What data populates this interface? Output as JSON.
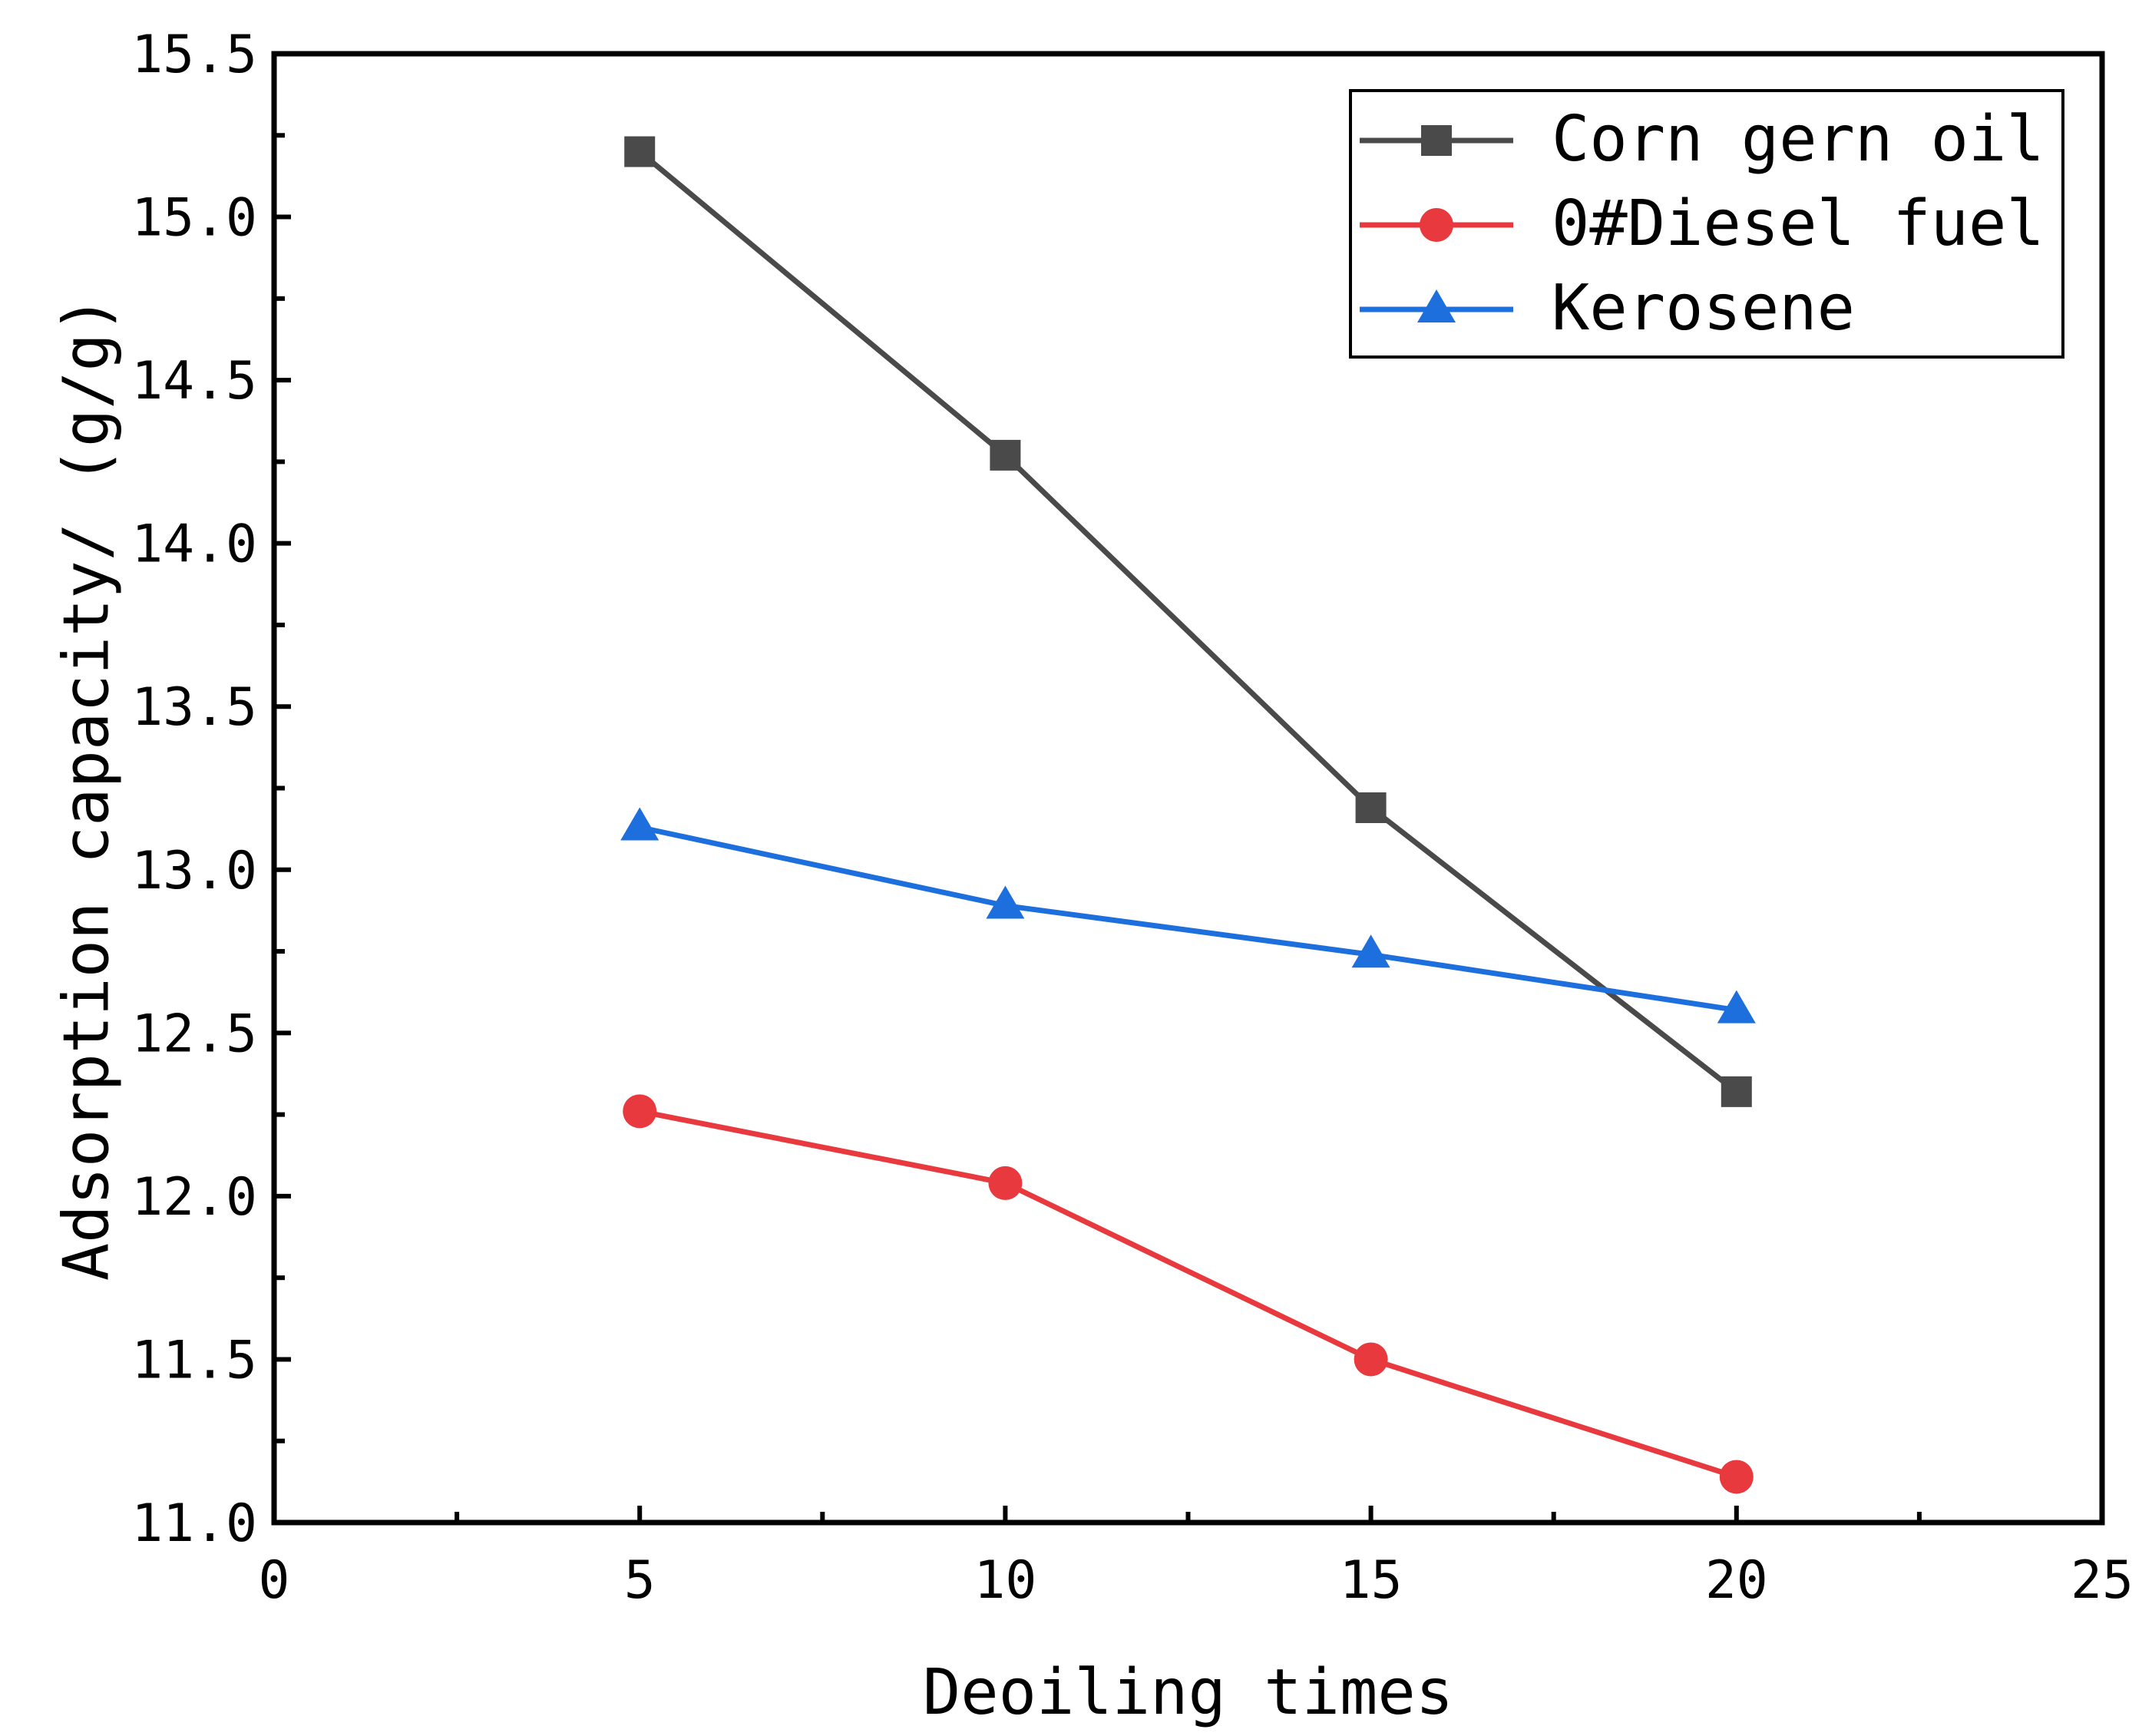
{
  "chart_data": {
    "type": "line",
    "title": "",
    "xlabel": "Deoiling times",
    "ylabel": "Adsorption capacity/ (g/g)",
    "xlim": [
      0,
      25
    ],
    "ylim": [
      11.0,
      15.5
    ],
    "x_ticks": [
      0,
      5,
      10,
      15,
      20,
      25
    ],
    "x_tick_labels": [
      "0",
      "5",
      "10",
      "15",
      "20",
      "25"
    ],
    "y_ticks": [
      11.0,
      11.5,
      12.0,
      12.5,
      13.0,
      13.5,
      14.0,
      14.5,
      15.0,
      15.5
    ],
    "y_tick_labels": [
      "11.0",
      "11.5",
      "12.0",
      "12.5",
      "13.0",
      "13.5",
      "14.0",
      "14.5",
      "15.0",
      "15.5"
    ],
    "grid": false,
    "legend_position": "top-right",
    "x": [
      5,
      10,
      15,
      20
    ],
    "series": [
      {
        "name": "Corn gern oil",
        "marker": "square",
        "color": "#4a4a4a",
        "values": [
          15.2,
          14.27,
          13.19,
          12.32
        ]
      },
      {
        "name": "0#Diesel fuel",
        "marker": "circle",
        "color": "#e8393e",
        "values": [
          12.26,
          12.04,
          11.5,
          11.14
        ]
      },
      {
        "name": "Kerosene",
        "marker": "triangle",
        "color": "#1c6fdc",
        "values": [
          13.13,
          12.89,
          12.74,
          12.57
        ]
      }
    ]
  }
}
